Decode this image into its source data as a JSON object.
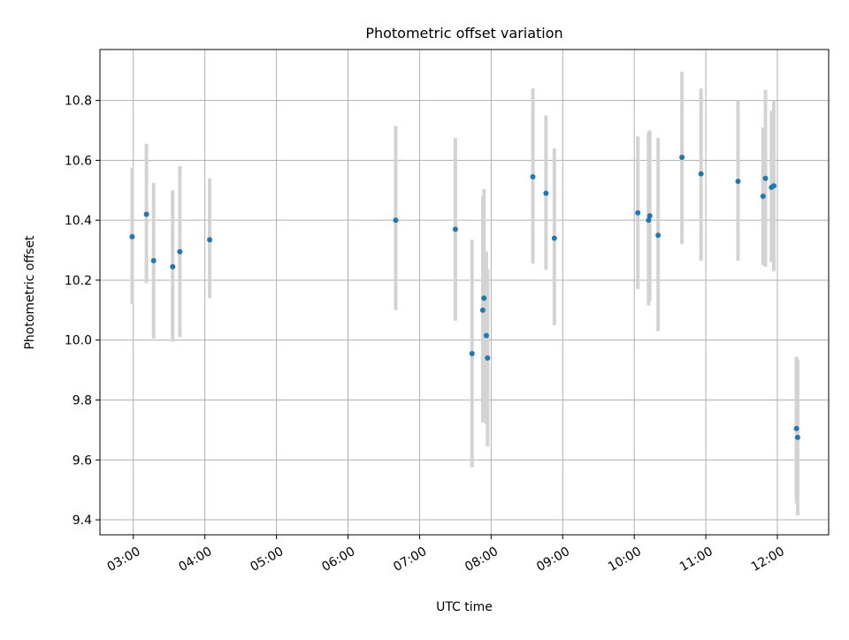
{
  "chart_data": {
    "type": "scatter",
    "title": "Photometric offset variation",
    "xlabel": "UTC time",
    "ylabel": "Photometric offset",
    "x_is_time": true,
    "xlim": [
      "02:32",
      "12:43"
    ],
    "ylim": [
      9.35,
      10.97
    ],
    "x_ticks": [
      "03:00",
      "04:00",
      "05:00",
      "06:00",
      "07:00",
      "08:00",
      "09:00",
      "10:00",
      "11:00",
      "12:00"
    ],
    "y_ticks": [
      9.4,
      9.6,
      9.8,
      10.0,
      10.2,
      10.4,
      10.6,
      10.8
    ],
    "y_tick_labels": [
      "9.4",
      "9.6",
      "9.8",
      "10.0",
      "10.2",
      "10.4",
      "10.6",
      "10.8"
    ],
    "grid": true,
    "marker_color": "#1f77b4",
    "errorbar_color": "#d3d3d3",
    "points": [
      {
        "x": "02:59",
        "y": 10.345,
        "err_low": 10.12,
        "err_high": 10.575
      },
      {
        "x": "03:11",
        "y": 10.42,
        "err_low": 10.19,
        "err_high": 10.655
      },
      {
        "x": "03:17",
        "y": 10.265,
        "err_low": 10.005,
        "err_high": 10.525
      },
      {
        "x": "03:33",
        "y": 10.245,
        "err_low": 9.995,
        "err_high": 10.5
      },
      {
        "x": "03:39",
        "y": 10.295,
        "err_low": 10.01,
        "err_high": 10.58
      },
      {
        "x": "04:04",
        "y": 10.335,
        "err_low": 10.14,
        "err_high": 10.54
      },
      {
        "x": "06:40",
        "y": 10.4,
        "err_low": 10.1,
        "err_high": 10.715
      },
      {
        "x": "07:30",
        "y": 10.37,
        "err_low": 10.065,
        "err_high": 10.675
      },
      {
        "x": "07:44",
        "y": 9.955,
        "err_low": 9.575,
        "err_high": 10.335
      },
      {
        "x": "07:53",
        "y": 10.1,
        "err_low": 9.725,
        "err_high": 10.48
      },
      {
        "x": "07:54",
        "y": 10.14,
        "err_low": 9.775,
        "err_high": 10.505
      },
      {
        "x": "07:56",
        "y": 10.015,
        "err_low": 9.72,
        "err_high": 10.295
      },
      {
        "x": "07:57",
        "y": 9.94,
        "err_low": 9.645,
        "err_high": 10.235
      },
      {
        "x": "08:35",
        "y": 10.545,
        "err_low": 10.255,
        "err_high": 10.84
      },
      {
        "x": "08:46",
        "y": 10.49,
        "err_low": 10.235,
        "err_high": 10.75
      },
      {
        "x": "08:53",
        "y": 10.34,
        "err_low": 10.05,
        "err_high": 10.64
      },
      {
        "x": "10:03",
        "y": 10.425,
        "err_low": 10.17,
        "err_high": 10.68
      },
      {
        "x": "10:12",
        "y": 10.4,
        "err_low": 10.115,
        "err_high": 10.695
      },
      {
        "x": "10:13",
        "y": 10.415,
        "err_low": 10.13,
        "err_high": 10.7
      },
      {
        "x": "10:20",
        "y": 10.35,
        "err_low": 10.03,
        "err_high": 10.675
      },
      {
        "x": "10:40",
        "y": 10.61,
        "err_low": 10.32,
        "err_high": 10.895
      },
      {
        "x": "10:56",
        "y": 10.555,
        "err_low": 10.265,
        "err_high": 10.84
      },
      {
        "x": "11:27",
        "y": 10.53,
        "err_low": 10.265,
        "err_high": 10.8
      },
      {
        "x": "11:48",
        "y": 10.48,
        "err_low": 10.25,
        "err_high": 10.71
      },
      {
        "x": "11:50",
        "y": 10.54,
        "err_low": 10.245,
        "err_high": 10.835
      },
      {
        "x": "11:55",
        "y": 10.51,
        "err_low": 10.26,
        "err_high": 10.765
      },
      {
        "x": "11:57",
        "y": 10.515,
        "err_low": 10.23,
        "err_high": 10.8
      },
      {
        "x": "12:16",
        "y": 9.705,
        "err_low": 9.455,
        "err_high": 9.945
      },
      {
        "x": "12:17",
        "y": 9.675,
        "err_low": 9.415,
        "err_high": 9.935
      }
    ]
  }
}
